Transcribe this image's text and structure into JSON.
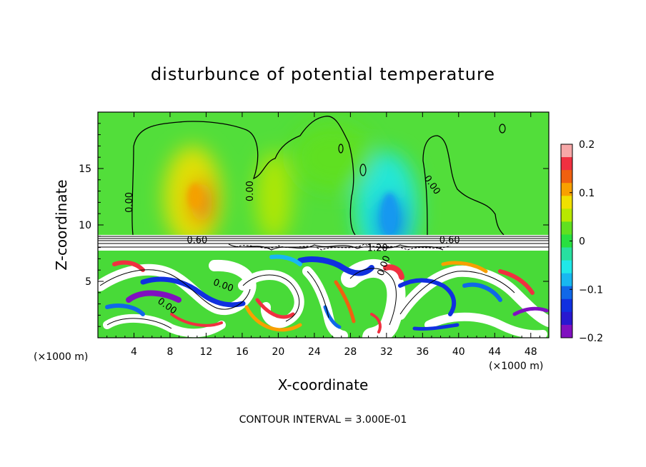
{
  "chart_data": {
    "type": "heatmap",
    "title": "disturbunce of potential temperature",
    "xlabel": "X-coordinate",
    "ylabel": "Z-coordinate",
    "x_unit_left": "(×1000 m)",
    "x_unit_right": "(×1000 m)",
    "xlim": [
      0,
      50
    ],
    "ylim": [
      0,
      20
    ],
    "x_ticks": [
      4,
      8,
      12,
      16,
      20,
      24,
      28,
      32,
      36,
      40,
      44,
      48
    ],
    "x_tick_labels": [
      "4",
      "8",
      "12",
      "16",
      "20",
      "24",
      "28",
      "32",
      "36",
      "40",
      "44",
      "48"
    ],
    "y_ticks": [
      5,
      10,
      15
    ],
    "y_tick_labels": [
      "5",
      "10",
      "15"
    ],
    "colorbar": {
      "range": [
        -0.2,
        0.2
      ],
      "ticks": [
        0.2,
        0.1,
        0,
        -0.1,
        -0.2
      ],
      "tick_labels": [
        "0.2",
        "0.1",
        "0",
        "−0.1",
        "−0.2"
      ],
      "colors": [
        "#f7a8a8",
        "#f03040",
        "#f06010",
        "#f8a000",
        "#f0e000",
        "#b8e800",
        "#60e020",
        "#28e040",
        "#28e0a0",
        "#20e8e8",
        "#18b8f0",
        "#1068e8",
        "#1030e0",
        "#2818d0",
        "#8010c0"
      ]
    },
    "contour_interval_text": "CONTOUR INTERVAL = 3.000E-01",
    "contour_labels": [
      {
        "text": "0.00",
        "x": 3.8,
        "z": 12.0,
        "rotate": -90
      },
      {
        "text": "0.00",
        "x": 17.2,
        "z": 13.0,
        "rotate": -90
      },
      {
        "text": "0.00",
        "x": 36.8,
        "z": 13.4,
        "rotate": 55
      },
      {
        "text": "0.60",
        "x": 11.0,
        "z": 8.4,
        "rotate": 0
      },
      {
        "text": "0.60",
        "x": 39.0,
        "z": 8.4,
        "rotate": 0
      },
      {
        "text": "1.20",
        "x": 31.0,
        "z": 7.7,
        "rotate": 0
      },
      {
        "text": "0.00",
        "x": 13.8,
        "z": 4.4,
        "rotate": 20
      },
      {
        "text": "0.00",
        "x": 7.5,
        "z": 2.6,
        "rotate": 35
      },
      {
        "text": "0.00",
        "x": 32.0,
        "z": 6.3,
        "rotate": -70
      }
    ],
    "upper_layer": {
      "z_range": [
        9,
        20
      ],
      "background_value": 0.0,
      "anomalies": [
        {
          "x": 10.5,
          "z": 12.5,
          "rx": 3.2,
          "rz": 4.5,
          "value": 0.09
        },
        {
          "x": 11.5,
          "z": 12.0,
          "rx": 1.2,
          "rz": 2.0,
          "value": 0.13
        },
        {
          "x": 19.5,
          "z": 12.5,
          "rx": 2.0,
          "rz": 4.0,
          "value": 0.04
        },
        {
          "x": 32.0,
          "z": 11.5,
          "rx": 3.5,
          "rz": 5.0,
          "value": -0.06
        },
        {
          "x": 32.5,
          "z": 10.3,
          "rx": 1.5,
          "rz": 2.2,
          "value": -0.11
        },
        {
          "x": 26.0,
          "z": 16.0,
          "rx": 4.5,
          "rz": 3.0,
          "value": 0.03
        }
      ]
    },
    "inversion_band": {
      "z_range": [
        7.8,
        8.9
      ],
      "value": 0.6
    },
    "lower_layer": {
      "z_range": [
        0,
        7.8
      ],
      "note_values": [
        -0.2,
        0.2
      ]
    }
  }
}
